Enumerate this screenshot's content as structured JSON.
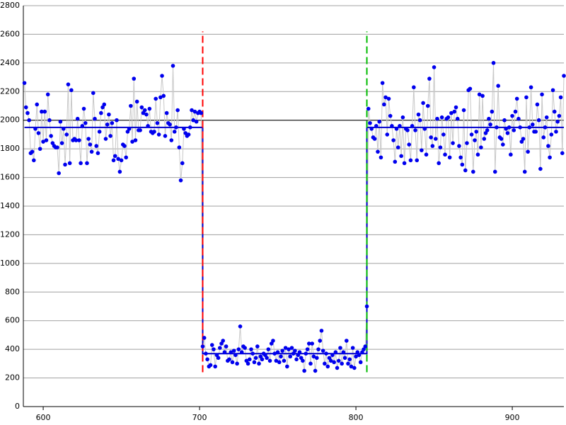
{
  "chart_data": {
    "type": "line",
    "xlim": [
      587.3,
      933
    ],
    "ylim": [
      0,
      2800
    ],
    "xticks": [
      600,
      700,
      800,
      900
    ],
    "yticks": [
      0,
      200,
      400,
      600,
      800,
      1000,
      1200,
      1400,
      1600,
      1800,
      2000,
      2200,
      2400,
      2600,
      2800
    ],
    "grid": true,
    "hlines": [
      {
        "y": 2000,
        "color": "#000000"
      }
    ],
    "vlines": [
      {
        "x": 702,
        "color": "#ff0000",
        "ymin": 240,
        "ymax": 2620
      },
      {
        "x": 807,
        "color": "#00bb00",
        "ymin": 240,
        "ymax": 2620
      }
    ],
    "series": [
      {
        "color": "#0000ee",
        "line_color": "#c8c8c8",
        "x": [
          588,
          589,
          590,
          591,
          592,
          593,
          594,
          595,
          596,
          597,
          598,
          599,
          600,
          601,
          602,
          603,
          604,
          605,
          606,
          607,
          608,
          609,
          610,
          611,
          612,
          613,
          614,
          615,
          616,
          617,
          618,
          619,
          620,
          621,
          622,
          623,
          624,
          625,
          626,
          627,
          628,
          629,
          630,
          631,
          632,
          633,
          634,
          635,
          636,
          637,
          638,
          639,
          640,
          641,
          642,
          643,
          644,
          645,
          646,
          647,
          648,
          649,
          650,
          651,
          652,
          653,
          654,
          655,
          656,
          657,
          658,
          659,
          660,
          661,
          662,
          663,
          664,
          665,
          666,
          667,
          668,
          669,
          670,
          671,
          672,
          673,
          674,
          675,
          676,
          677,
          678,
          679,
          680,
          681,
          682,
          683,
          684,
          685,
          686,
          687,
          688,
          689,
          690,
          691,
          692,
          693,
          694,
          695,
          696,
          697,
          698,
          699,
          700,
          701,
          702,
          703,
          704,
          705,
          706,
          707,
          708,
          709,
          710,
          711,
          712,
          713,
          714,
          715,
          716,
          717,
          718,
          719,
          720,
          721,
          722,
          723,
          724,
          725,
          726,
          727,
          728,
          729,
          730,
          731,
          732,
          733,
          734,
          735,
          736,
          737,
          738,
          739,
          740,
          741,
          742,
          743,
          744,
          745,
          746,
          747,
          748,
          749,
          750,
          751,
          752,
          753,
          754,
          755,
          756,
          757,
          758,
          759,
          760,
          761,
          762,
          763,
          764,
          765,
          766,
          767,
          768,
          769,
          770,
          771,
          772,
          773,
          774,
          775,
          776,
          777,
          778,
          779,
          780,
          781,
          782,
          783,
          784,
          785,
          786,
          787,
          788,
          789,
          790,
          791,
          792,
          793,
          794,
          795,
          796,
          797,
          798,
          799,
          800,
          801,
          802,
          803,
          804,
          805,
          806,
          807,
          808,
          809,
          810,
          811,
          812,
          813,
          814,
          815,
          816,
          817,
          818,
          819,
          820,
          821,
          822,
          823,
          824,
          825,
          826,
          827,
          828,
          829,
          830,
          831,
          832,
          833,
          834,
          835,
          836,
          837,
          838,
          839,
          840,
          841,
          842,
          843,
          844,
          845,
          846,
          847,
          848,
          849,
          850,
          851,
          852,
          853,
          854,
          855,
          856,
          857,
          858,
          859,
          860,
          861,
          862,
          863,
          864,
          865,
          866,
          867,
          868,
          869,
          870,
          871,
          872,
          873,
          874,
          875,
          876,
          877,
          878,
          879,
          880,
          881,
          882,
          883,
          884,
          885,
          886,
          887,
          888,
          889,
          890,
          891,
          892,
          893,
          894,
          895,
          896,
          897,
          898,
          899,
          900,
          901,
          902,
          903,
          904,
          905,
          906,
          907,
          908,
          909,
          910,
          911,
          912,
          913,
          914,
          915,
          916,
          917,
          918,
          919,
          920,
          921,
          922,
          923,
          924,
          925,
          926,
          927,
          928,
          929,
          930,
          931,
          932,
          933
        ],
        "values": [
          2260,
          2090,
          2050,
          2000,
          1770,
          1780,
          1720,
          1940,
          2110,
          1910,
          1800,
          2060,
          1850,
          2060,
          1860,
          2180,
          2000,
          1890,
          1840,
          1820,
          1810,
          1810,
          1630,
          1990,
          1840,
          1940,
          1690,
          1900,
          2250,
          1700,
          2210,
          1860,
          1870,
          1860,
          2010,
          1860,
          1700,
          1960,
          2080,
          1980,
          1700,
          1870,
          1830,
          1780,
          2190,
          2010,
          1820,
          1770,
          1920,
          2050,
          2090,
          2110,
          1870,
          1970,
          2040,
          1890,
          1980,
          1720,
          1750,
          2000,
          1730,
          1640,
          1720,
          1830,
          1820,
          1740,
          1920,
          1940,
          2100,
          1850,
          2290,
          1860,
          2130,
          1930,
          1930,
          2090,
          2050,
          2070,
          2040,
          1960,
          2080,
          1920,
          1910,
          1920,
          2150,
          1980,
          1900,
          2160,
          2310,
          2170,
          1890,
          2050,
          1980,
          1970,
          1860,
          2380,
          1920,
          1950,
          2070,
          1810,
          1580,
          1700,
          1940,
          1910,
          1890,
          1900,
          1950,
          2070,
          2000,
          2060,
          1990,
          2050,
          2060,
          2050,
          420,
          480,
          370,
          330,
          280,
          290,
          430,
          400,
          280,
          360,
          340,
          410,
          440,
          460,
          380,
          420,
          320,
          330,
          380,
          310,
          390,
          360,
          300,
          400,
          560,
          380,
          420,
          410,
          320,
          300,
          330,
          400,
          370,
          310,
          340,
          420,
          300,
          350,
          330,
          370,
          360,
          340,
          400,
          320,
          440,
          460,
          370,
          320,
          380,
          310,
          350,
          390,
          320,
          410,
          280,
          400,
          350,
          410,
          370,
          390,
          330,
          360,
          380,
          340,
          320,
          250,
          370,
          400,
          440,
          300,
          440,
          350,
          250,
          340,
          400,
          460,
          530,
          390,
          300,
          370,
          280,
          340,
          320,
          360,
          310,
          380,
          270,
          320,
          410,
          300,
          380,
          340,
          460,
          300,
          330,
          280,
          410,
          270,
          350,
          380,
          360,
          310,
          380,
          400,
          420,
          700,
          2080,
          1980,
          1940,
          1880,
          1870,
          1960,
          1780,
          1990,
          1740,
          2260,
          2110,
          2160,
          1900,
          2150,
          2030,
          1960,
          1860,
          1710,
          1940,
          1810,
          1960,
          1750,
          2020,
          1700,
          1940,
          1930,
          1830,
          1720,
          1960,
          2230,
          1930,
          1720,
          2040,
          2000,
          1790,
          2120,
          1940,
          1760,
          2100,
          2290,
          1880,
          1820,
          2370,
          1870,
          2010,
          1700,
          1810,
          2020,
          1900,
          1760,
          2010,
          2020,
          1740,
          2050,
          1840,
          2060,
          2090,
          2010,
          1820,
          1740,
          1690,
          2070,
          1650,
          1840,
          2210,
          2220,
          1900,
          1640,
          1860,
          1920,
          1760,
          2180,
          1810,
          2170,
          1870,
          1910,
          1930,
          2010,
          1970,
          2060,
          2400,
          1640,
          1950,
          2240,
          1880,
          1870,
          1830,
          2000,
          1940,
          1910,
          1950,
          1760,
          2030,
          1930,
          2060,
          2150,
          2010,
          1950,
          1850,
          1870,
          1640,
          2160,
          1780,
          1950,
          2230,
          1970,
          1920,
          1920,
          2110,
          2000,
          1660,
          2180,
          1880,
          1950,
          2020,
          1820,
          1740,
          1900,
          2210,
          2060,
          1920,
          1990,
          2030,
          2160,
          1770,
          2310
        ]
      },
      {
        "color": "#0000cc",
        "x": [
          588,
          702,
          702,
          807,
          807,
          933
        ],
        "values": [
          1950,
          1950,
          370,
          370,
          1950,
          1950
        ]
      }
    ]
  }
}
